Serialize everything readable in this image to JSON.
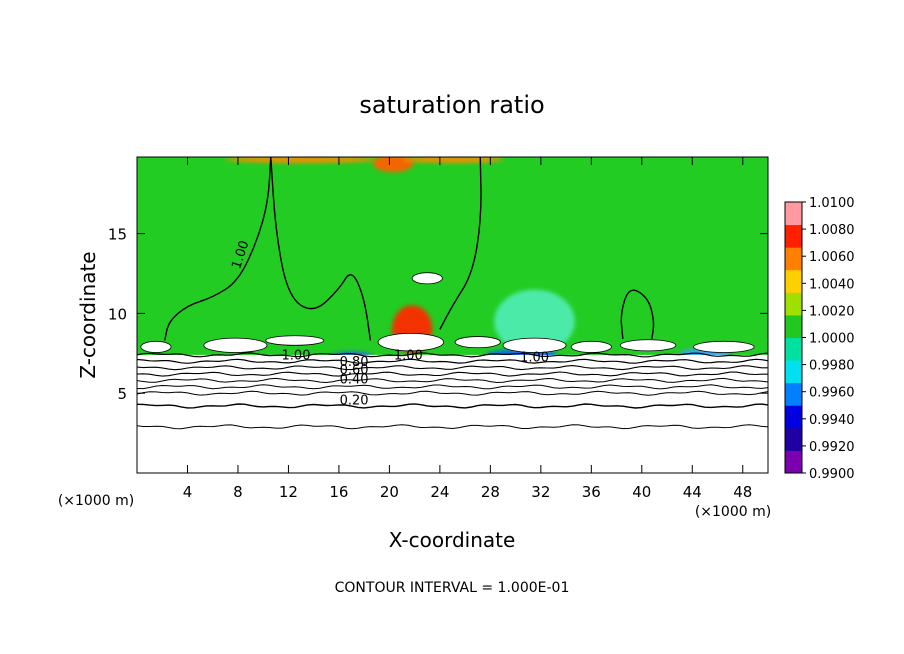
{
  "chart_data": {
    "type": "heatmap",
    "title": "saturation ratio",
    "xlabel": "X-coordinate",
    "ylabel": "Z-coordinate",
    "x_unit": "(×1000 m)",
    "y_unit": "(×1000 m)",
    "footer": "CONTOUR INTERVAL = 1.000E-01",
    "xlim": [
      0,
      50
    ],
    "ylim": [
      0,
      19.8
    ],
    "x_ticks": [
      4,
      8,
      12,
      16,
      20,
      24,
      28,
      32,
      36,
      40,
      44,
      48
    ],
    "y_ticks": [
      5,
      10,
      15
    ],
    "colorbar": {
      "range": [
        0.99,
        1.01
      ],
      "labels": [
        "1.0100",
        "1.0080",
        "1.0060",
        "1.0040",
        "1.0020",
        "1.0000",
        "0.9980",
        "0.9960",
        "0.9940",
        "0.9920",
        "0.9900"
      ],
      "colors": [
        "#7a00b0",
        "#2000a0",
        "#0000e0",
        "#0080ff",
        "#00e0f0",
        "#00e0a0",
        "#20c820",
        "#a0e000",
        "#ffd000",
        "#ff8000",
        "#ff2000",
        "#ff9aa0"
      ]
    },
    "background_color": "#22cc22",
    "contour_labels": [
      {
        "text": "1.00",
        "x": 8.5,
        "y": 13.6,
        "rotate": -72
      },
      {
        "text": "1.00",
        "x": 12.6,
        "y": 7.1
      },
      {
        "text": "1.00",
        "x": 21.5,
        "y": 7.1
      },
      {
        "text": "1.00",
        "x": 31.5,
        "y": 7.0
      },
      {
        "text": "0.80",
        "x": 17.2,
        "y": 6.7
      },
      {
        "text": "0.60",
        "x": 17.2,
        "y": 6.2
      },
      {
        "text": "0.40",
        "x": 17.2,
        "y": 5.6
      },
      {
        "text": "0.20",
        "x": 17.2,
        "y": 4.3
      }
    ],
    "contour_levels": [
      {
        "z": 7.4,
        "w": 1.2
      },
      {
        "z": 7.0,
        "w": 1.2
      },
      {
        "z": 6.6,
        "w": 1.1
      },
      {
        "z": 6.2,
        "w": 1.1
      },
      {
        "z": 5.8,
        "w": 1.0
      },
      {
        "z": 5.4,
        "w": 1.0
      },
      {
        "z": 5.0,
        "w": 1.0
      },
      {
        "z": 4.2,
        "w": 1.4
      },
      {
        "z": 2.9,
        "w": 1.0
      }
    ],
    "contour_100": [
      [
        [
          10.6,
          19.8
        ],
        [
          10.4,
          17.0
        ],
        [
          9.5,
          14.5
        ],
        [
          8.0,
          12.0
        ],
        [
          6.0,
          11.0
        ],
        [
          4.0,
          10.5
        ],
        [
          2.5,
          9.5
        ],
        [
          2.2,
          8.3
        ]
      ],
      [
        [
          10.6,
          19.8
        ],
        [
          11.0,
          15.0
        ],
        [
          12.0,
          11.0
        ],
        [
          14.0,
          10.0
        ],
        [
          16.0,
          11.5
        ],
        [
          17.0,
          12.8
        ],
        [
          18.0,
          11.0
        ],
        [
          18.5,
          8.3
        ]
      ],
      [
        [
          27.2,
          19.8
        ],
        [
          27.3,
          16.0
        ],
        [
          26.6,
          12.5
        ],
        [
          25.0,
          10.5
        ],
        [
          24.0,
          9.0
        ]
      ],
      [
        [
          38.5,
          8.4
        ],
        [
          38.3,
          10.0
        ],
        [
          39.0,
          11.7
        ],
        [
          40.5,
          11.0
        ],
        [
          41.0,
          9.5
        ],
        [
          40.8,
          8.4
        ]
      ]
    ],
    "warm_patches": [
      {
        "x": 21.8,
        "y": 9.0,
        "rx": 1.6,
        "ry": 1.5,
        "color": "#ff2a00"
      },
      {
        "x": 20.3,
        "y": 19.4,
        "rx": 1.6,
        "ry": 0.55,
        "color": "#ff6000"
      },
      {
        "x": 13.0,
        "y": 19.65,
        "rx": 6.0,
        "ry": 0.22,
        "color": "#ff8a00"
      },
      {
        "x": 25.0,
        "y": 19.65,
        "rx": 4.0,
        "ry": 0.22,
        "color": "#ff8a00"
      }
    ],
    "cool_patches": [
      {
        "x": 31.5,
        "y": 9.5,
        "rx": 3.2,
        "ry": 2.0,
        "color": "#50ecb0"
      },
      {
        "x": 30.5,
        "y": 7.4,
        "rx": 2.8,
        "ry": 0.35,
        "color": "#1060ff"
      },
      {
        "x": 17.0,
        "y": 7.3,
        "rx": 1.6,
        "ry": 0.3,
        "color": "#2060ff"
      },
      {
        "x": 45.0,
        "y": 7.5,
        "rx": 2.0,
        "ry": 0.3,
        "color": "#40a0ff"
      }
    ],
    "cloud_gaps": [
      {
        "x": 1.5,
        "y": 7.9,
        "rx": 1.2,
        "ry": 0.35
      },
      {
        "x": 7.8,
        "y": 8.0,
        "rx": 2.5,
        "ry": 0.45
      },
      {
        "x": 12.5,
        "y": 8.3,
        "rx": 2.3,
        "ry": 0.3
      },
      {
        "x": 21.7,
        "y": 8.2,
        "rx": 2.6,
        "ry": 0.55
      },
      {
        "x": 27.0,
        "y": 8.2,
        "rx": 1.8,
        "ry": 0.35
      },
      {
        "x": 31.5,
        "y": 8.0,
        "rx": 2.5,
        "ry": 0.45
      },
      {
        "x": 36.0,
        "y": 7.9,
        "rx": 1.6,
        "ry": 0.35
      },
      {
        "x": 40.5,
        "y": 8.0,
        "rx": 2.2,
        "ry": 0.35
      },
      {
        "x": 46.5,
        "y": 7.9,
        "rx": 2.4,
        "ry": 0.35
      },
      {
        "x": 23.0,
        "y": 12.2,
        "rx": 1.2,
        "ry": 0.35
      }
    ]
  }
}
